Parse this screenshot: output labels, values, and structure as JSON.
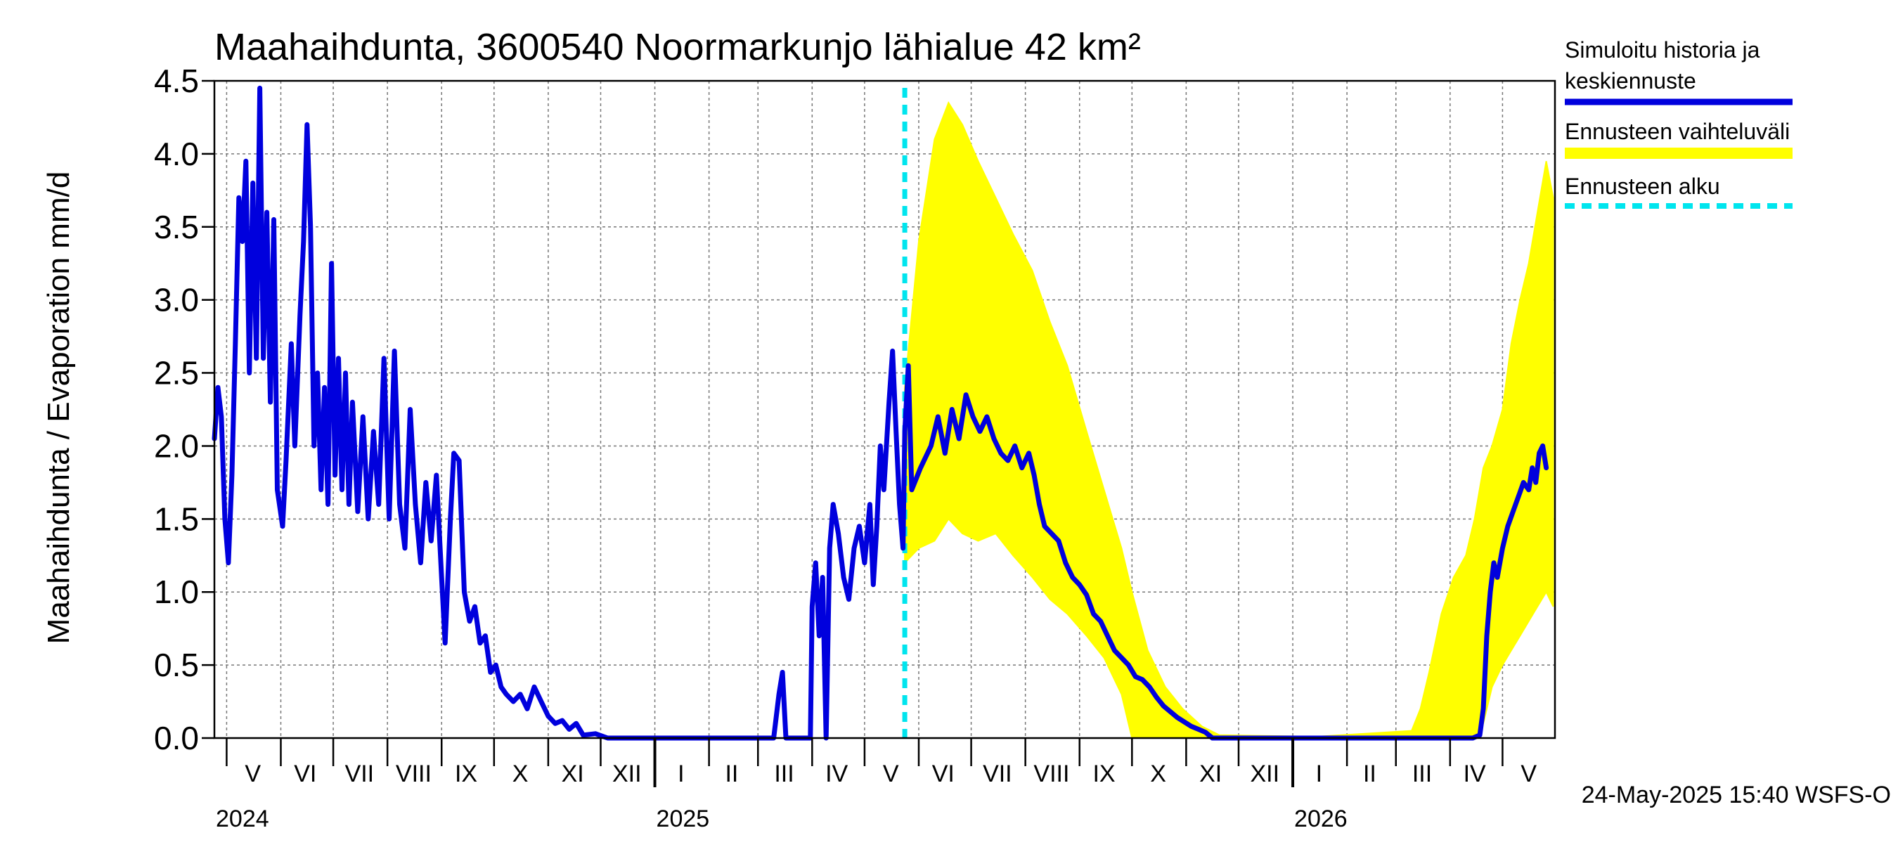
{
  "chart_data": {
    "type": "line",
    "title": "Maahaihdunta, 3600540 Noormarkunjo lähialue 42 km²",
    "ylabel": "Maahaihdunta / Evaporation   mm/d",
    "xlabel": "",
    "ylim": [
      0,
      4.5
    ],
    "xlim": [
      "2024-04-24",
      "2026-05-31"
    ],
    "y_ticks": [
      "0.0",
      "0.5",
      "1.0",
      "1.5",
      "2.0",
      "2.5",
      "3.0",
      "3.5",
      "4.0",
      "4.5"
    ],
    "month_labels": [
      {
        "label": "V",
        "date": "2024-05-16"
      },
      {
        "label": "VI",
        "date": "2024-06-15"
      },
      {
        "label": "VII",
        "date": "2024-07-16"
      },
      {
        "label": "VIII",
        "date": "2024-08-16"
      },
      {
        "label": "IX",
        "date": "2024-09-15"
      },
      {
        "label": "X",
        "date": "2024-10-16"
      },
      {
        "label": "XI",
        "date": "2024-11-15"
      },
      {
        "label": "XII",
        "date": "2024-12-16"
      },
      {
        "label": "I",
        "date": "2025-01-16"
      },
      {
        "label": "II",
        "date": "2025-02-14"
      },
      {
        "label": "III",
        "date": "2025-03-16"
      },
      {
        "label": "IV",
        "date": "2025-04-15"
      },
      {
        "label": "V",
        "date": "2025-05-16"
      },
      {
        "label": "VI",
        "date": "2025-06-15"
      },
      {
        "label": "VII",
        "date": "2025-07-16"
      },
      {
        "label": "VIII",
        "date": "2025-08-16"
      },
      {
        "label": "IX",
        "date": "2025-09-15"
      },
      {
        "label": "X",
        "date": "2025-10-16"
      },
      {
        "label": "XI",
        "date": "2025-11-15"
      },
      {
        "label": "XII",
        "date": "2025-12-16"
      },
      {
        "label": "I",
        "date": "2026-01-16"
      },
      {
        "label": "II",
        "date": "2026-02-14"
      },
      {
        "label": "III",
        "date": "2026-03-16"
      },
      {
        "label": "IV",
        "date": "2026-04-15"
      },
      {
        "label": "V",
        "date": "2026-05-16"
      }
    ],
    "year_labels": [
      {
        "label": "2024",
        "date": "2024-04-24"
      },
      {
        "label": "2025",
        "date": "2025-01-01"
      },
      {
        "label": "2026",
        "date": "2026-01-01"
      }
    ],
    "forecast_start": "2025-05-24",
    "series": [
      {
        "name": "Simuloitu historia ja keskiennuste",
        "color": "#0000dd",
        "points": [
          [
            "2024-04-24",
            2.05
          ],
          [
            "2024-04-26",
            2.4
          ],
          [
            "2024-04-28",
            2.2
          ],
          [
            "2024-04-30",
            1.5
          ],
          [
            "2024-05-02",
            1.2
          ],
          [
            "2024-05-04",
            1.8
          ],
          [
            "2024-05-06",
            2.7
          ],
          [
            "2024-05-08",
            3.7
          ],
          [
            "2024-05-10",
            3.4
          ],
          [
            "2024-05-12",
            3.95
          ],
          [
            "2024-05-14",
            2.5
          ],
          [
            "2024-05-16",
            3.8
          ],
          [
            "2024-05-18",
            2.6
          ],
          [
            "2024-05-20",
            4.45
          ],
          [
            "2024-05-22",
            2.6
          ],
          [
            "2024-05-24",
            3.6
          ],
          [
            "2024-05-26",
            2.3
          ],
          [
            "2024-05-28",
            3.55
          ],
          [
            "2024-05-30",
            1.7
          ],
          [
            "2024-06-02",
            1.45
          ],
          [
            "2024-06-04",
            1.9
          ],
          [
            "2024-06-07",
            2.7
          ],
          [
            "2024-06-09",
            2.0
          ],
          [
            "2024-06-12",
            2.9
          ],
          [
            "2024-06-14",
            3.4
          ],
          [
            "2024-06-16",
            4.2
          ],
          [
            "2024-06-18",
            3.5
          ],
          [
            "2024-06-20",
            2.0
          ],
          [
            "2024-06-22",
            2.5
          ],
          [
            "2024-06-24",
            1.7
          ],
          [
            "2024-06-26",
            2.4
          ],
          [
            "2024-06-28",
            1.6
          ],
          [
            "2024-06-30",
            3.25
          ],
          [
            "2024-07-02",
            1.8
          ],
          [
            "2024-07-04",
            2.6
          ],
          [
            "2024-07-06",
            1.7
          ],
          [
            "2024-07-08",
            2.5
          ],
          [
            "2024-07-10",
            1.6
          ],
          [
            "2024-07-12",
            2.3
          ],
          [
            "2024-07-15",
            1.55
          ],
          [
            "2024-07-18",
            2.2
          ],
          [
            "2024-07-21",
            1.5
          ],
          [
            "2024-07-24",
            2.1
          ],
          [
            "2024-07-27",
            1.6
          ],
          [
            "2024-07-30",
            2.6
          ],
          [
            "2024-08-02",
            1.5
          ],
          [
            "2024-08-05",
            2.65
          ],
          [
            "2024-08-08",
            1.6
          ],
          [
            "2024-08-11",
            1.3
          ],
          [
            "2024-08-14",
            2.25
          ],
          [
            "2024-08-17",
            1.6
          ],
          [
            "2024-08-20",
            1.2
          ],
          [
            "2024-08-23",
            1.75
          ],
          [
            "2024-08-26",
            1.35
          ],
          [
            "2024-08-29",
            1.8
          ],
          [
            "2024-09-01",
            1.1
          ],
          [
            "2024-09-03",
            0.65
          ],
          [
            "2024-09-06",
            1.5
          ],
          [
            "2024-09-08",
            1.95
          ],
          [
            "2024-09-11",
            1.9
          ],
          [
            "2024-09-14",
            1.0
          ],
          [
            "2024-09-17",
            0.8
          ],
          [
            "2024-09-20",
            0.9
          ],
          [
            "2024-09-23",
            0.65
          ],
          [
            "2024-09-26",
            0.7
          ],
          [
            "2024-09-29",
            0.45
          ],
          [
            "2024-10-02",
            0.5
          ],
          [
            "2024-10-05",
            0.35
          ],
          [
            "2024-10-08",
            0.3
          ],
          [
            "2024-10-12",
            0.25
          ],
          [
            "2024-10-16",
            0.3
          ],
          [
            "2024-10-20",
            0.2
          ],
          [
            "2024-10-24",
            0.35
          ],
          [
            "2024-10-28",
            0.25
          ],
          [
            "2024-11-01",
            0.15
          ],
          [
            "2024-11-05",
            0.1
          ],
          [
            "2024-11-09",
            0.12
          ],
          [
            "2024-11-13",
            0.06
          ],
          [
            "2024-11-17",
            0.1
          ],
          [
            "2024-11-21",
            0.02
          ],
          [
            "2024-11-28",
            0.03
          ],
          [
            "2024-12-05",
            0.0
          ],
          [
            "2025-01-15",
            0.0
          ],
          [
            "2025-03-10",
            0.0
          ],
          [
            "2025-03-13",
            0.3
          ],
          [
            "2025-03-15",
            0.45
          ],
          [
            "2025-03-17",
            0.0
          ],
          [
            "2025-03-31",
            0.0
          ],
          [
            "2025-04-01",
            0.9
          ],
          [
            "2025-04-03",
            1.2
          ],
          [
            "2025-04-05",
            0.7
          ],
          [
            "2025-04-07",
            1.1
          ],
          [
            "2025-04-09",
            0.0
          ],
          [
            "2025-04-11",
            1.3
          ],
          [
            "2025-04-13",
            1.6
          ],
          [
            "2025-04-16",
            1.4
          ],
          [
            "2025-04-19",
            1.1
          ],
          [
            "2025-04-22",
            0.95
          ],
          [
            "2025-04-25",
            1.3
          ],
          [
            "2025-04-28",
            1.45
          ],
          [
            "2025-05-01",
            1.2
          ],
          [
            "2025-05-04",
            1.6
          ],
          [
            "2025-05-06",
            1.05
          ],
          [
            "2025-05-08",
            1.45
          ],
          [
            "2025-05-10",
            2.0
          ],
          [
            "2025-05-12",
            1.7
          ],
          [
            "2025-05-15",
            2.3
          ],
          [
            "2025-05-17",
            2.65
          ],
          [
            "2025-05-19",
            2.1
          ],
          [
            "2025-05-21",
            1.6
          ],
          [
            "2025-05-23",
            1.3
          ],
          [
            "2025-05-24",
            2.1
          ],
          [
            "2025-05-26",
            2.55
          ],
          [
            "2025-05-28",
            1.7
          ],
          [
            "2025-06-02",
            1.85
          ],
          [
            "2025-06-08",
            2.0
          ],
          [
            "2025-06-12",
            2.2
          ],
          [
            "2025-06-16",
            1.95
          ],
          [
            "2025-06-20",
            2.25
          ],
          [
            "2025-06-24",
            2.05
          ],
          [
            "2025-06-28",
            2.35
          ],
          [
            "2025-07-02",
            2.2
          ],
          [
            "2025-07-06",
            2.1
          ],
          [
            "2025-07-10",
            2.2
          ],
          [
            "2025-07-14",
            2.05
          ],
          [
            "2025-07-18",
            1.95
          ],
          [
            "2025-07-22",
            1.9
          ],
          [
            "2025-07-26",
            2.0
          ],
          [
            "2025-07-30",
            1.85
          ],
          [
            "2025-08-03",
            1.95
          ],
          [
            "2025-08-06",
            1.8
          ],
          [
            "2025-08-09",
            1.6
          ],
          [
            "2025-08-12",
            1.45
          ],
          [
            "2025-08-16",
            1.4
          ],
          [
            "2025-08-20",
            1.35
          ],
          [
            "2025-08-24",
            1.2
          ],
          [
            "2025-08-28",
            1.1
          ],
          [
            "2025-09-01",
            1.05
          ],
          [
            "2025-09-05",
            0.98
          ],
          [
            "2025-09-09",
            0.85
          ],
          [
            "2025-09-13",
            0.8
          ],
          [
            "2025-09-17",
            0.7
          ],
          [
            "2025-09-21",
            0.6
          ],
          [
            "2025-09-25",
            0.55
          ],
          [
            "2025-09-29",
            0.5
          ],
          [
            "2025-10-03",
            0.42
          ],
          [
            "2025-10-07",
            0.4
          ],
          [
            "2025-10-11",
            0.35
          ],
          [
            "2025-10-15",
            0.28
          ],
          [
            "2025-10-19",
            0.22
          ],
          [
            "2025-10-23",
            0.18
          ],
          [
            "2025-10-27",
            0.14
          ],
          [
            "2025-10-31",
            0.11
          ],
          [
            "2025-11-04",
            0.08
          ],
          [
            "2025-11-08",
            0.06
          ],
          [
            "2025-11-12",
            0.04
          ],
          [
            "2025-11-16",
            0.0
          ],
          [
            "2026-01-15",
            0.0
          ],
          [
            "2026-03-15",
            0.0
          ],
          [
            "2026-04-14",
            0.0
          ],
          [
            "2026-04-18",
            0.02
          ],
          [
            "2026-04-20",
            0.2
          ],
          [
            "2026-04-22",
            0.7
          ],
          [
            "2026-04-24",
            1.0
          ],
          [
            "2026-04-26",
            1.2
          ],
          [
            "2026-04-28",
            1.1
          ],
          [
            "2026-05-01",
            1.3
          ],
          [
            "2026-05-04",
            1.45
          ],
          [
            "2026-05-07",
            1.55
          ],
          [
            "2026-05-10",
            1.65
          ],
          [
            "2026-05-13",
            1.75
          ],
          [
            "2026-05-16",
            1.7
          ],
          [
            "2026-05-18",
            1.85
          ],
          [
            "2026-05-20",
            1.75
          ],
          [
            "2026-05-22",
            1.95
          ],
          [
            "2026-05-24",
            2.0
          ],
          [
            "2026-05-26",
            1.85
          ]
        ]
      },
      {
        "name": "Ennusteen vaihteluväli",
        "color": "#ffff00",
        "band": [
          [
            "2025-05-24",
            1.2,
            2.4
          ],
          [
            "2025-06-01",
            1.3,
            3.4
          ],
          [
            "2025-06-10",
            1.35,
            4.1
          ],
          [
            "2025-06-18",
            1.5,
            4.35
          ],
          [
            "2025-06-26",
            1.4,
            4.2
          ],
          [
            "2025-07-05",
            1.35,
            3.95
          ],
          [
            "2025-07-15",
            1.4,
            3.7
          ],
          [
            "2025-07-25",
            1.25,
            3.45
          ],
          [
            "2025-08-05",
            1.1,
            3.2
          ],
          [
            "2025-08-15",
            0.95,
            2.85
          ],
          [
            "2025-08-25",
            0.85,
            2.55
          ],
          [
            "2025-09-05",
            0.7,
            2.1
          ],
          [
            "2025-09-15",
            0.55,
            1.7
          ],
          [
            "2025-09-25",
            0.3,
            1.3
          ],
          [
            "2025-10-01",
            0.0,
            1.0
          ],
          [
            "2025-10-10",
            0.0,
            0.6
          ],
          [
            "2025-10-20",
            0.0,
            0.35
          ],
          [
            "2025-10-30",
            0.0,
            0.2
          ],
          [
            "2025-11-10",
            0.0,
            0.08
          ],
          [
            "2025-11-20",
            0.0,
            0.02
          ],
          [
            "2026-01-15",
            0.0,
            0.01
          ],
          [
            "2026-03-10",
            0.0,
            0.05
          ],
          [
            "2026-03-15",
            0.0,
            0.2
          ],
          [
            "2026-03-20",
            0.0,
            0.45
          ],
          [
            "2026-03-27",
            0.0,
            0.85
          ],
          [
            "2026-04-03",
            0.0,
            1.1
          ],
          [
            "2026-04-10",
            0.0,
            1.25
          ],
          [
            "2026-04-15",
            0.0,
            1.5
          ],
          [
            "2026-04-20",
            0.1,
            1.85
          ],
          [
            "2026-04-25",
            0.35,
            2.0
          ],
          [
            "2026-05-01",
            0.5,
            2.25
          ],
          [
            "2026-05-06",
            0.6,
            2.7
          ],
          [
            "2026-05-11",
            0.7,
            3.0
          ],
          [
            "2026-05-16",
            0.8,
            3.25
          ],
          [
            "2026-05-21",
            0.9,
            3.6
          ],
          [
            "2026-05-26",
            1.0,
            3.95
          ],
          [
            "2026-05-30",
            0.9,
            3.7
          ]
        ]
      },
      {
        "name": "Ennusteen alku",
        "color": "#00e5ee"
      }
    ],
    "legend_position": "right",
    "grid": true
  },
  "footer": {
    "timestamp": "24-May-2025 15:40 WSFS-O"
  }
}
